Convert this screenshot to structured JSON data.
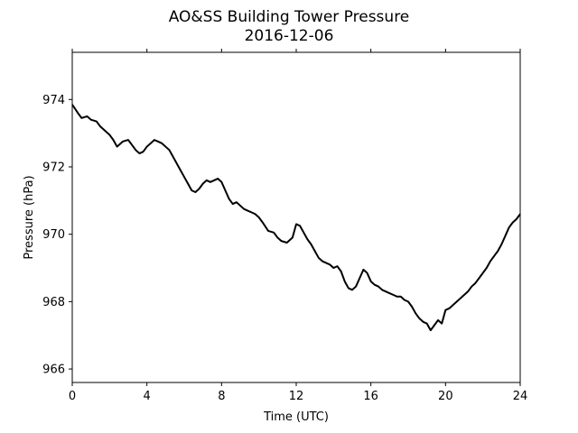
{
  "chart_data": {
    "type": "line",
    "title": "AO&SS Building Tower Pressure",
    "subtitle": "2016-12-06",
    "xlabel": "Time (UTC)",
    "ylabel": "Pressure (hPa)",
    "xlim": [
      0,
      24
    ],
    "ylim": [
      965.6,
      975.4
    ],
    "xticks": [
      0,
      4,
      8,
      12,
      16,
      20,
      24
    ],
    "yticks": [
      966,
      968,
      970,
      972,
      974
    ],
    "grid": false,
    "series": [
      {
        "color": "#000000",
        "x": [
          0.0,
          0.3,
          0.5,
          0.8,
          1.0,
          1.3,
          1.5,
          1.8,
          2.0,
          2.2,
          2.4,
          2.5,
          2.7,
          3.0,
          3.2,
          3.4,
          3.6,
          3.8,
          4.0,
          4.2,
          4.4,
          4.6,
          4.8,
          5.0,
          5.2,
          5.4,
          5.6,
          5.8,
          6.0,
          6.2,
          6.4,
          6.6,
          6.8,
          7.0,
          7.2,
          7.4,
          7.6,
          7.8,
          8.0,
          8.2,
          8.4,
          8.6,
          8.8,
          9.0,
          9.2,
          9.4,
          9.6,
          9.8,
          10.0,
          10.2,
          10.5,
          10.8,
          11.0,
          11.2,
          11.5,
          11.8,
          12.0,
          12.2,
          12.4,
          12.6,
          12.8,
          13.0,
          13.2,
          13.4,
          13.6,
          13.8,
          14.0,
          14.2,
          14.4,
          14.6,
          14.8,
          15.0,
          15.2,
          15.4,
          15.6,
          15.8,
          16.0,
          16.2,
          16.4,
          16.6,
          16.8,
          17.0,
          17.2,
          17.4,
          17.6,
          17.8,
          18.0,
          18.2,
          18.4,
          18.6,
          18.8,
          19.0,
          19.2,
          19.4,
          19.6,
          19.8,
          20.0,
          20.2,
          20.4,
          20.6,
          20.8,
          21.0,
          21.2,
          21.4,
          21.6,
          21.8,
          22.0,
          22.2,
          22.4,
          22.6,
          22.8,
          23.0,
          23.2,
          23.4,
          23.6,
          23.8,
          24.0
        ],
        "values": [
          973.85,
          973.6,
          973.45,
          973.5,
          973.4,
          973.35,
          973.2,
          973.05,
          972.95,
          972.8,
          972.6,
          972.65,
          972.75,
          972.8,
          972.65,
          972.5,
          972.4,
          972.45,
          972.6,
          972.7,
          972.8,
          972.75,
          972.7,
          972.6,
          972.5,
          972.3,
          972.1,
          971.9,
          971.7,
          971.5,
          971.3,
          971.25,
          971.35,
          971.5,
          971.6,
          971.55,
          971.6,
          971.65,
          971.55,
          971.3,
          971.05,
          970.9,
          970.95,
          970.85,
          970.75,
          970.7,
          970.65,
          970.6,
          970.5,
          970.35,
          970.1,
          970.05,
          969.9,
          969.8,
          969.75,
          969.9,
          970.3,
          970.25,
          970.05,
          969.85,
          969.7,
          969.5,
          969.3,
          969.2,
          969.15,
          969.1,
          969.0,
          969.05,
          968.9,
          968.6,
          968.4,
          968.35,
          968.45,
          968.7,
          968.95,
          968.85,
          968.6,
          968.5,
          968.45,
          968.35,
          968.3,
          968.25,
          968.2,
          968.15,
          968.15,
          968.05,
          968.0,
          967.85,
          967.65,
          967.5,
          967.4,
          967.35,
          967.15,
          967.3,
          967.45,
          967.35,
          967.75,
          967.8,
          967.9,
          968.0,
          968.1,
          968.2,
          968.3,
          968.45,
          968.55,
          968.7,
          968.85,
          969.0,
          969.2,
          969.35,
          969.5,
          969.7,
          969.95,
          970.2,
          970.35,
          970.45,
          970.6
        ]
      }
    ]
  }
}
